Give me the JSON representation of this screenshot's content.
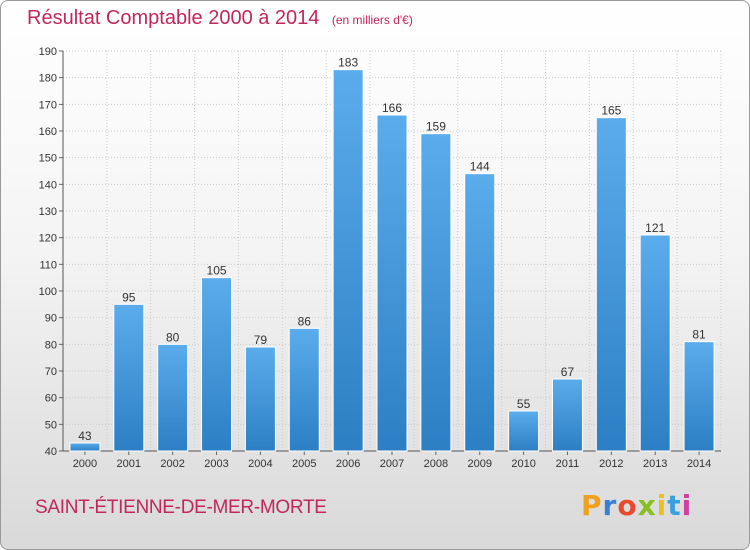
{
  "header": {
    "title": "Résultat Comptable 2000 à 2014",
    "unit": "(en milliers d'€)"
  },
  "footer": {
    "commune": "SAINT-ÉTIENNE-DE-MER-MORTE",
    "logo_letters": [
      "P",
      "r",
      "o",
      "x",
      "i",
      "t",
      "i"
    ],
    "logo_colors": [
      "#f0a020",
      "#3a7fd0",
      "#e84a2a",
      "#88c020",
      "#e8c020",
      "#3aa0e0",
      "#d040a0"
    ]
  },
  "colors": {
    "title": "#c0285a",
    "bar_light": "#5aacec",
    "bar_dark": "#2c7fc4",
    "grid": "#cccccc"
  },
  "chart_data": {
    "type": "bar",
    "title": "Résultat Comptable 2000 à 2014",
    "subtitle": "(en milliers d'€)",
    "xlabel": "",
    "ylabel": "",
    "categories": [
      "2000",
      "2001",
      "2002",
      "2003",
      "2004",
      "2005",
      "2006",
      "2007",
      "2008",
      "2009",
      "2010",
      "2011",
      "2012",
      "2013",
      "2014"
    ],
    "values": [
      43,
      95,
      80,
      105,
      79,
      86,
      183,
      166,
      159,
      144,
      55,
      67,
      165,
      121,
      81
    ],
    "ylim": [
      40,
      190
    ],
    "yticks": [
      40,
      50,
      60,
      70,
      80,
      90,
      100,
      110,
      120,
      130,
      140,
      150,
      160,
      170,
      180,
      190
    ],
    "grid": true
  }
}
